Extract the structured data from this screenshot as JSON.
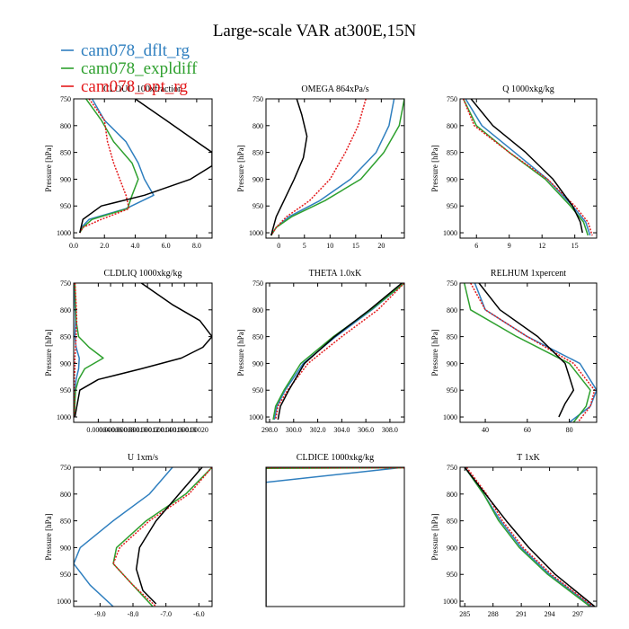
{
  "title": "Large-scale VAR at300E,15N",
  "legend": [
    {
      "name": "cam078_dflt_rg",
      "color": "#2f7fbf"
    },
    {
      "name": "cam078_expldiff",
      "color": "#2ea02e"
    },
    {
      "name": "cam078_opt_rg",
      "color": "#e41a1c"
    }
  ],
  "chart_data": [
    {
      "type": "line",
      "title": "CLOUD 100xfraction",
      "ylabel": "Pressure [hPa]",
      "xlim": [
        0,
        9
      ],
      "ylim": [
        1010,
        750
      ],
      "xticks": [
        0,
        2,
        4,
        6,
        8
      ],
      "xticklabels": [
        "0.0",
        "2.0",
        "4.0",
        "6.0",
        "8.0"
      ],
      "yticks": [
        750,
        800,
        850,
        900,
        950,
        1000
      ],
      "series": [
        {
          "name": "cam078_dflt_rg",
          "x": [
            1.2,
            2.0,
            3.4,
            4.2,
            4.6,
            5.2,
            3.4,
            1.0,
            0.5,
            0.4
          ],
          "y": [
            750,
            790,
            830,
            870,
            900,
            930,
            955,
            975,
            990,
            1000
          ]
        },
        {
          "name": "cam078_expldiff",
          "x": [
            0.8,
            1.8,
            2.6,
            3.8,
            4.2,
            3.8,
            3.5,
            1.2,
            0.6,
            0.4
          ],
          "y": [
            750,
            790,
            830,
            870,
            900,
            930,
            955,
            975,
            990,
            1000
          ]
        },
        {
          "name": "cam078_opt_rg",
          "x": [
            1.0,
            2.0,
            2.2,
            2.6,
            3.0,
            3.4,
            3.6,
            1.8,
            0.6,
            0.4
          ],
          "y": [
            750,
            790,
            830,
            870,
            900,
            930,
            955,
            975,
            990,
            1000
          ]
        },
        {
          "name": "",
          "x": [
            4.0,
            6.0,
            8.0,
            9.0,
            9.0,
            7.6,
            4.6,
            1.8,
            0.6,
            0.4
          ],
          "y": [
            750,
            790,
            830,
            850,
            875,
            900,
            930,
            950,
            975,
            1000
          ]
        }
      ]
    },
    {
      "type": "line",
      "title": "OMEGA  864xPa/s",
      "ylabel": "Pressure [hPa]",
      "xlim": [
        -2.5,
        24.5
      ],
      "ylim": [
        1010,
        750
      ],
      "xticks": [
        0,
        5,
        10,
        15,
        20
      ],
      "xticklabels": [
        "0",
        "5",
        "10",
        "15",
        "20"
      ],
      "yticks": [
        750,
        800,
        850,
        900,
        950,
        1000
      ],
      "series": [
        {
          "name": "cam078_dflt_rg",
          "x": [
            22.5,
            21.5,
            19,
            14,
            8,
            2,
            -0.5,
            -1.5
          ],
          "y": [
            750,
            800,
            850,
            900,
            940,
            970,
            990,
            1005
          ]
        },
        {
          "name": "cam078_expldiff",
          "x": [
            24.5,
            23.5,
            20.5,
            16,
            9,
            2.5,
            -0.5,
            -1.5
          ],
          "y": [
            750,
            800,
            850,
            900,
            940,
            970,
            990,
            1005
          ]
        },
        {
          "name": "cam078_opt_rg",
          "x": [
            17,
            15.5,
            13,
            10,
            6,
            1.5,
            -0.5,
            -1.5
          ],
          "y": [
            750,
            800,
            850,
            900,
            940,
            970,
            990,
            1005
          ]
        },
        {
          "name": "",
          "x": [
            3.5,
            4.5,
            5.5,
            4.8,
            3.0,
            1.0,
            -0.5,
            -1.5
          ],
          "y": [
            750,
            780,
            820,
            860,
            900,
            940,
            970,
            1005
          ]
        }
      ]
    },
    {
      "type": "line",
      "title": "Q  1000xkg/kg",
      "ylabel": "Pressure [hPa]",
      "xlim": [
        4.5,
        17
      ],
      "ylim": [
        1010,
        750
      ],
      "xticks": [
        6,
        9,
        12,
        15
      ],
      "xticklabels": [
        "6",
        "9",
        "12",
        "15"
      ],
      "yticks": [
        750,
        800,
        850,
        900,
        950,
        1000
      ],
      "series": [
        {
          "name": "cam078_dflt_rg",
          "x": [
            5.0,
            6.5,
            9.5,
            12.5,
            14.8,
            16.0,
            16.4
          ],
          "y": [
            750,
            800,
            850,
            900,
            950,
            980,
            1005
          ]
        },
        {
          "name": "cam078_expldiff",
          "x": [
            4.8,
            6.0,
            9.0,
            12.3,
            14.6,
            15.8,
            16.2
          ],
          "y": [
            750,
            800,
            850,
            900,
            950,
            980,
            1005
          ]
        },
        {
          "name": "cam078_opt_rg",
          "x": [
            4.8,
            5.8,
            9.0,
            12.5,
            15.0,
            16.2,
            16.6
          ],
          "y": [
            750,
            800,
            850,
            900,
            950,
            980,
            1005
          ]
        },
        {
          "name": "",
          "x": [
            5.5,
            7.5,
            10.5,
            13.0,
            14.8,
            15.5,
            15.7
          ],
          "y": [
            750,
            800,
            850,
            900,
            950,
            980,
            1000
          ]
        }
      ]
    },
    {
      "type": "line",
      "title": "CLDLIQ  1000xkg/kg",
      "ylabel": "Pressure [hPa]",
      "xlim": [
        0,
        0.000225
      ],
      "ylim": [
        1010,
        750
      ],
      "xticks": [
        4e-05,
        6e-05,
        8e-05,
        0.0001,
        0.00012,
        0.00014,
        0.00016,
        0.00018,
        0.0002
      ],
      "xticklabels": [
        "0.00004",
        "0.00006",
        "0.00008",
        "0.00010",
        "0.00012",
        "0.00014",
        "0.00016",
        "0.00018",
        "0.00020"
      ],
      "yticks": [
        750,
        800,
        850,
        900,
        950,
        1000
      ],
      "series": [
        {
          "name": "cam078_dflt_rg",
          "x": [
            1e-06,
            2e-06,
            3e-06,
            2e-06,
            4e-06,
            9e-06,
            8e-06,
            4e-06,
            2e-06,
            1e-06
          ],
          "y": [
            750,
            790,
            820,
            850,
            870,
            890,
            910,
            930,
            950,
            1000
          ]
        },
        {
          "name": "cam078_expldiff",
          "x": [
            2e-06,
            3e-06,
            4e-06,
            8e-06,
            2.5e-05,
            4.8e-05,
            1.8e-05,
            8e-06,
            3e-06,
            1e-06
          ],
          "y": [
            750,
            790,
            820,
            850,
            870,
            890,
            910,
            930,
            950,
            1000
          ]
        },
        {
          "name": "cam078_opt_rg",
          "x": [
            2e-06,
            4e-06,
            5e-06,
            4e-06,
            3e-06,
            2e-06,
            2e-06,
            1e-06,
            1e-06,
            1e-06
          ],
          "y": [
            750,
            790,
            820,
            850,
            870,
            890,
            910,
            930,
            950,
            1000
          ]
        },
        {
          "name": "",
          "x": [
            0.00011,
            0.00016,
            0.000205,
            0.000225,
            0.00021,
            0.000175,
            0.00011,
            4e-05,
            1e-05,
            2e-06
          ],
          "y": [
            750,
            790,
            820,
            850,
            870,
            890,
            910,
            930,
            950,
            1000
          ]
        }
      ]
    },
    {
      "type": "line",
      "title": "THETA  1.0xK",
      "ylabel": "Pressure [hPa]",
      "xlim": [
        297.7,
        309.2
      ],
      "ylim": [
        1010,
        750
      ],
      "xticks": [
        298,
        300,
        302,
        304,
        306,
        308
      ],
      "xticklabels": [
        "298.0",
        "300.0",
        "302.0",
        "304.0",
        "306.0",
        "308.0"
      ],
      "yticks": [
        750,
        800,
        850,
        900,
        950,
        1000
      ],
      "series": [
        {
          "name": "cam078_dflt_rg",
          "x": [
            309.2,
            306.5,
            303.5,
            300.8,
            299.3,
            298.6,
            298.4
          ],
          "y": [
            750,
            800,
            850,
            900,
            950,
            980,
            1005
          ]
        },
        {
          "name": "cam078_expldiff",
          "x": [
            309.2,
            306.4,
            303.3,
            300.6,
            299.2,
            298.5,
            298.3
          ],
          "y": [
            750,
            800,
            850,
            900,
            950,
            980,
            1005
          ]
        },
        {
          "name": "cam078_opt_rg",
          "x": [
            309.2,
            307.0,
            304.0,
            301.2,
            299.5,
            298.7,
            298.5
          ],
          "y": [
            750,
            800,
            850,
            900,
            950,
            980,
            1005
          ]
        },
        {
          "name": "",
          "x": [
            309.0,
            306.3,
            303.4,
            300.9,
            299.6,
            298.9,
            298.7
          ],
          "y": [
            750,
            800,
            850,
            900,
            950,
            980,
            1005
          ]
        }
      ]
    },
    {
      "type": "line",
      "title": "RELHUM  1xpercent",
      "ylabel": "Pressure [hPa]",
      "xlim": [
        28,
        93
      ],
      "ylim": [
        1010,
        750
      ],
      "xticks": [
        40,
        60,
        80
      ],
      "xticklabels": [
        "40",
        "60",
        "80"
      ],
      "yticks": [
        750,
        800,
        850,
        900,
        950,
        1000
      ],
      "series": [
        {
          "name": "cam078_dflt_rg",
          "x": [
            35,
            40,
            60,
            85,
            93,
            90,
            80
          ],
          "y": [
            750,
            800,
            850,
            900,
            950,
            980,
            1010
          ]
        },
        {
          "name": "cam078_expldiff",
          "x": [
            30,
            33,
            55,
            80,
            90,
            88,
            82
          ],
          "y": [
            750,
            800,
            850,
            900,
            950,
            980,
            1010
          ]
        },
        {
          "name": "cam078_opt_rg",
          "x": [
            33,
            40,
            60,
            82,
            92,
            90,
            84
          ],
          "y": [
            750,
            800,
            850,
            900,
            950,
            980,
            1010
          ]
        },
        {
          "name": "",
          "x": [
            37,
            47,
            65,
            78,
            82,
            78,
            75
          ],
          "y": [
            750,
            800,
            850,
            900,
            950,
            975,
            1000
          ]
        }
      ]
    },
    {
      "type": "line",
      "title": "U  1xm/s",
      "ylabel": "Pressure [hPa]",
      "xlim": [
        -9.8,
        -5.6
      ],
      "ylim": [
        1010,
        750
      ],
      "xticks": [
        -9,
        -8,
        -7,
        -6
      ],
      "xticklabels": [
        "-9.0",
        "-8.0",
        "-7.0",
        "-6.0"
      ],
      "yticks": [
        750,
        800,
        850,
        900,
        950,
        1000
      ],
      "series": [
        {
          "name": "cam078_dflt_rg",
          "x": [
            -6.8,
            -7.5,
            -8.6,
            -9.6,
            -9.8,
            -9.3,
            -8.6
          ],
          "y": [
            750,
            800,
            850,
            900,
            930,
            970,
            1010
          ]
        },
        {
          "name": "cam078_expldiff",
          "x": [
            -5.6,
            -6.4,
            -7.6,
            -8.5,
            -8.6,
            -8.0,
            -7.4
          ],
          "y": [
            750,
            800,
            850,
            900,
            930,
            970,
            1010
          ]
        },
        {
          "name": "cam078_opt_rg",
          "x": [
            -5.6,
            -6.3,
            -7.5,
            -8.4,
            -8.6,
            -8.0,
            -7.3
          ],
          "y": [
            750,
            800,
            850,
            900,
            930,
            970,
            1010
          ]
        },
        {
          "name": "",
          "x": [
            -5.9,
            -6.6,
            -7.3,
            -7.8,
            -7.9,
            -7.7,
            -7.3
          ],
          "y": [
            750,
            800,
            850,
            900,
            940,
            980,
            1005
          ]
        }
      ]
    },
    {
      "type": "line",
      "title": "CLDICE  1000xkg/kg",
      "ylabel": "",
      "xlim": [
        0,
        1
      ],
      "ylim": [
        1010,
        750
      ],
      "xticks": [],
      "xticklabels": [],
      "yticks": [],
      "series": [
        {
          "name": "cam078_dflt_rg",
          "x": [
            1,
            0.0
          ],
          "y": [
            750,
            778
          ]
        },
        {
          "name": "cam078_expldiff",
          "x": [
            1,
            0.0
          ],
          "y": [
            751,
            752
          ]
        },
        {
          "name": "cam078_opt_rg",
          "x": [
            1,
            0.0
          ],
          "y": [
            751,
            751
          ]
        },
        {
          "name": "",
          "x": [
            0.0,
            0.0
          ],
          "y": [
            750,
            1010
          ]
        }
      ]
    },
    {
      "type": "line",
      "title": "T  1xK",
      "ylabel": "Pressure [hPa]",
      "xlim": [
        284.5,
        299
      ],
      "ylim": [
        1010,
        750
      ],
      "xticks": [
        285,
        288,
        291,
        294,
        297
      ],
      "xticklabels": [
        "285",
        "288",
        "291",
        "294",
        "297"
      ],
      "yticks": [
        750,
        800,
        850,
        900,
        950,
        1000
      ],
      "series": [
        {
          "name": "cam078_dflt_rg",
          "x": [
            285,
            287,
            288.8,
            291,
            294,
            298.5
          ],
          "y": [
            750,
            800,
            850,
            900,
            950,
            1010
          ]
        },
        {
          "name": "cam078_expldiff",
          "x": [
            285,
            287,
            288.6,
            290.8,
            293.8,
            298.3
          ],
          "y": [
            750,
            800,
            850,
            900,
            950,
            1010
          ]
        },
        {
          "name": "cam078_opt_rg",
          "x": [
            285.2,
            287.3,
            289,
            291.2,
            294.2,
            298.6
          ],
          "y": [
            750,
            800,
            850,
            900,
            950,
            1010
          ]
        },
        {
          "name": "",
          "x": [
            285,
            287.2,
            289.4,
            291.8,
            294.6,
            298.8
          ],
          "y": [
            750,
            800,
            850,
            900,
            950,
            1010
          ]
        }
      ]
    }
  ]
}
